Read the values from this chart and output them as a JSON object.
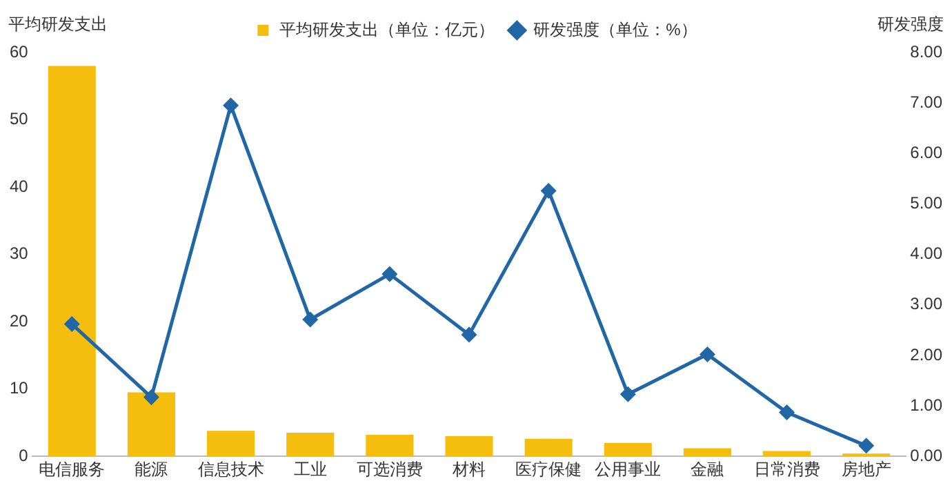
{
  "chart_data": {
    "type": "bar",
    "ylabel": "平均研发支出",
    "y2label": "研发强度",
    "categories": [
      "电信服务",
      "能源",
      "信息技术",
      "工业",
      "可选消费",
      "材料",
      "医疗保健",
      "公用事业",
      "金融",
      "日常消费",
      "房地产"
    ],
    "series": [
      {
        "name": "平均研发支出（单位：亿元）",
        "color": "#f5bd0e",
        "values": [
          58.0,
          9.5,
          3.8,
          3.5,
          3.2,
          3.0,
          2.6,
          2.0,
          1.2,
          0.8,
          0.4
        ]
      },
      {
        "name": "研发强度（单位：%）",
        "type": "line",
        "axis": "y2",
        "color": "#2166a5",
        "marker": "diamond",
        "line_style": "solid",
        "values": [
          2.62,
          1.17,
          6.95,
          2.71,
          3.61,
          2.41,
          5.26,
          1.23,
          2.02,
          0.87,
          0.21
        ]
      }
    ],
    "ylim": [
      0,
      60
    ],
    "yticks": [
      0,
      10,
      20,
      30,
      40,
      50,
      60
    ],
    "y2lim": [
      0,
      8
    ],
    "y2ticks": [
      {
        "value": 0,
        "label": "0.00"
      },
      {
        "value": 1,
        "label": "1.00"
      },
      {
        "value": 2,
        "label": "2.00"
      },
      {
        "value": 3,
        "label": "3.00"
      },
      {
        "value": 4,
        "label": "4.00"
      },
      {
        "value": 5,
        "label": "5.00"
      },
      {
        "value": 6,
        "label": "6.00"
      },
      {
        "value": 7,
        "label": "7.00"
      },
      {
        "value": 8,
        "label": "8.00"
      }
    ],
    "grid": false,
    "legend": "top"
  }
}
